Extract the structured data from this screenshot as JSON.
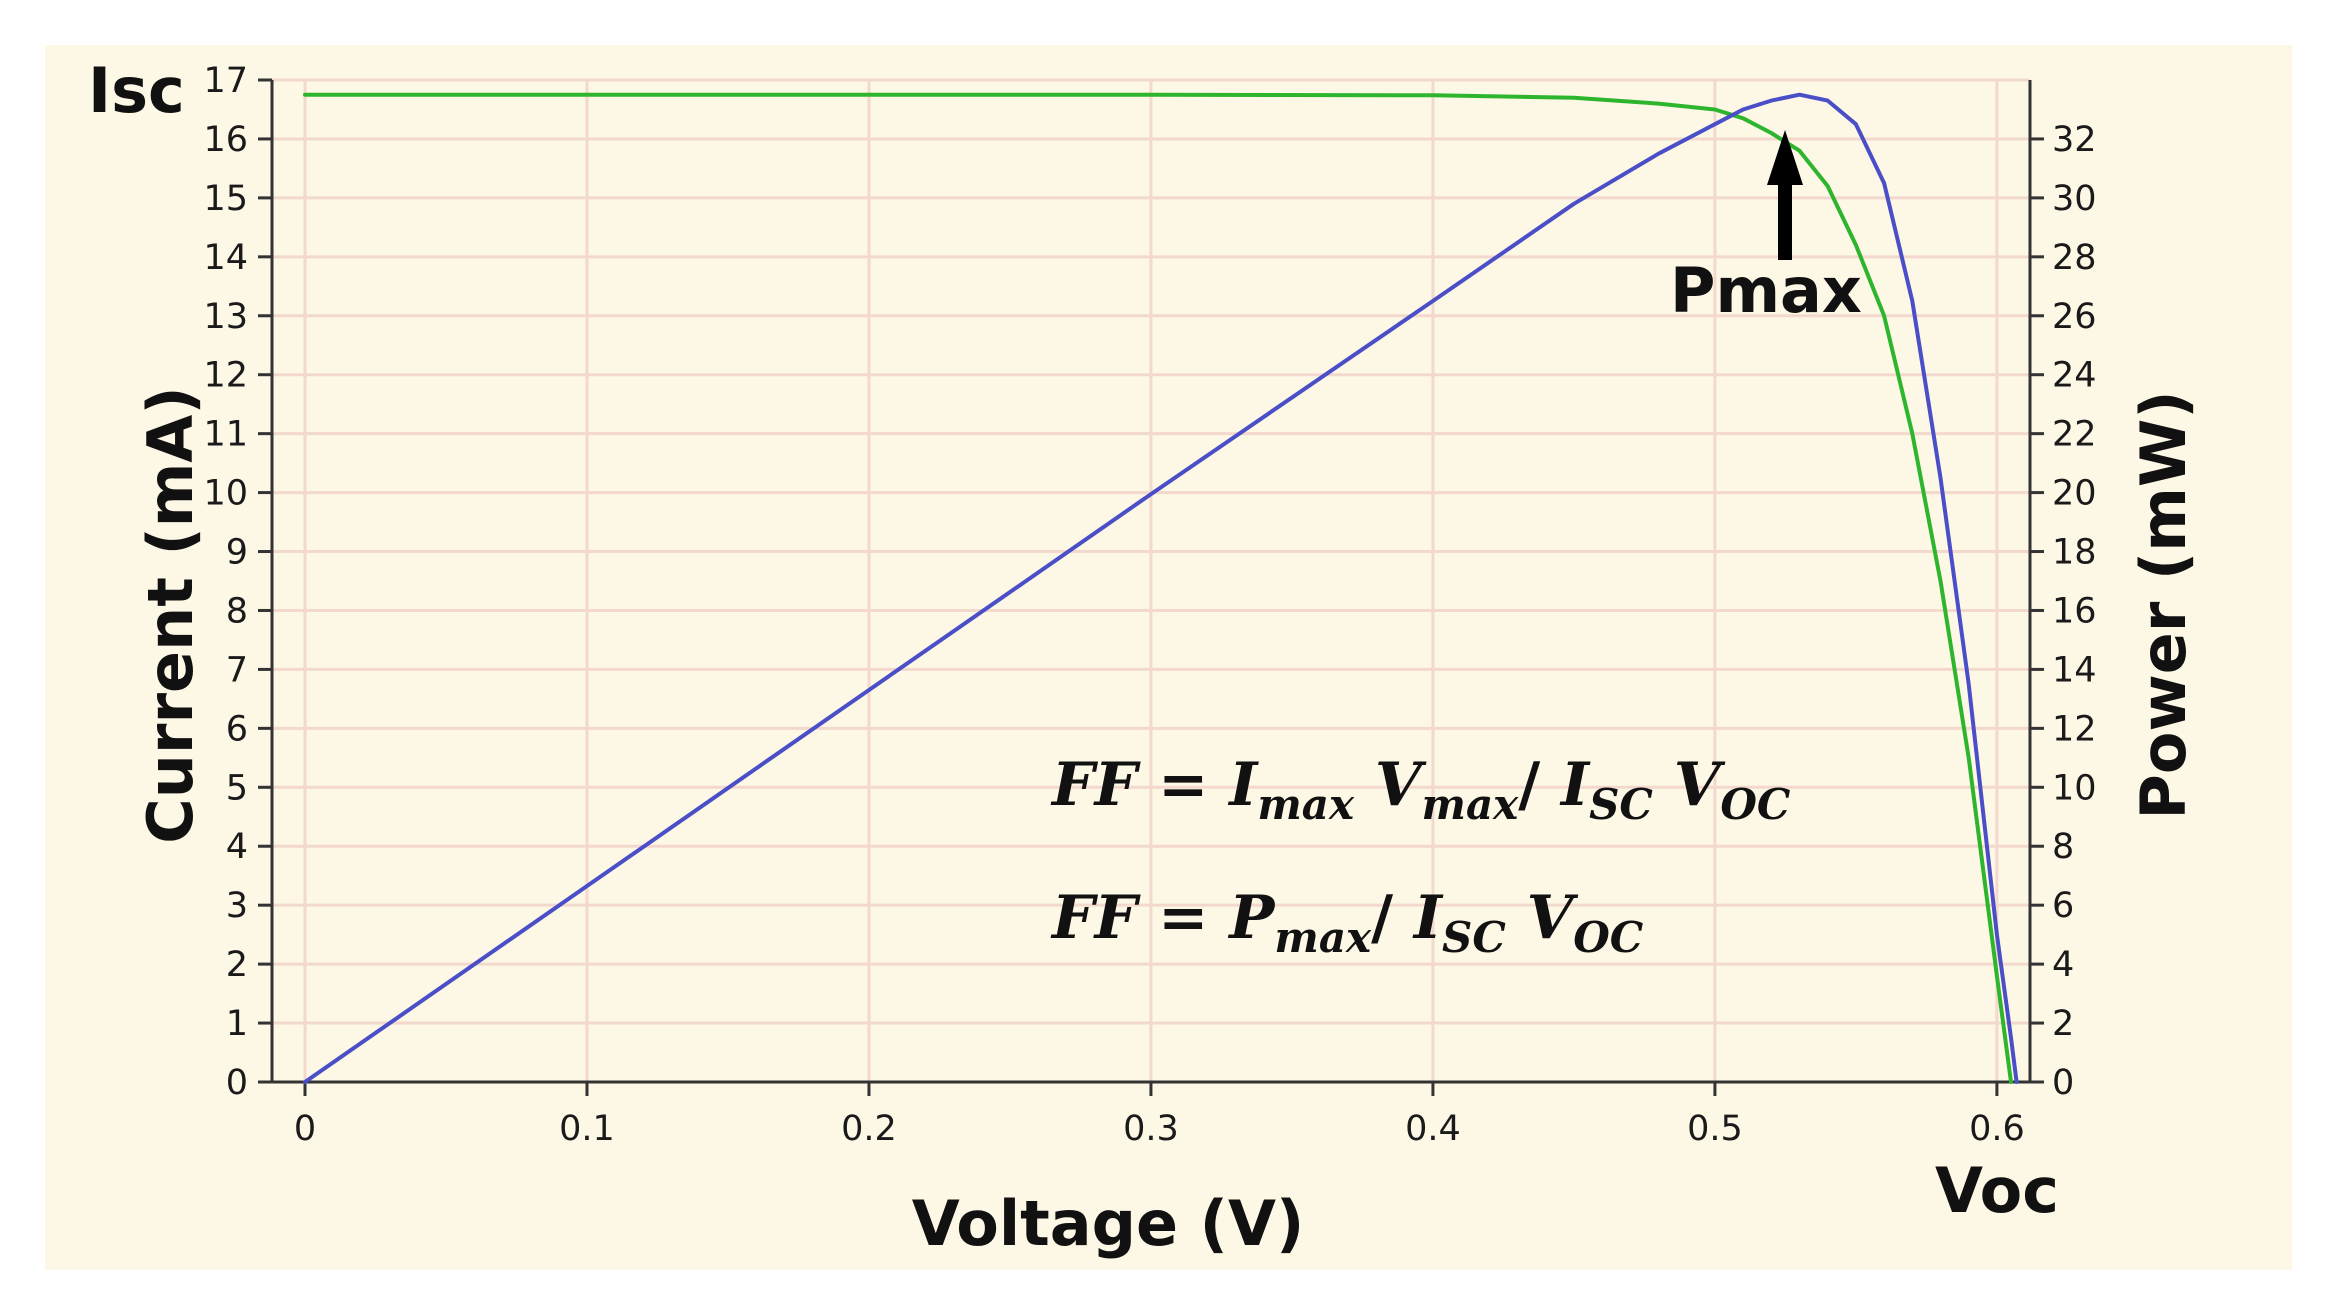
{
  "chart_data": {
    "type": "line",
    "xlabel": "Voltage (V)",
    "ylabel_left": "Current (mA)",
    "ylabel_right": "Power (mW)",
    "xlim": [
      0,
      0.62
    ],
    "ylim_left": [
      0,
      17
    ],
    "ylim_right": [
      0,
      34
    ],
    "x_ticks": [
      "0",
      "0.1",
      "0.2",
      "0.3",
      "0.4",
      "0.5",
      "0.6"
    ],
    "y_left_ticks": [
      "0",
      "1",
      "2",
      "3",
      "4",
      "5",
      "6",
      "7",
      "8",
      "9",
      "10",
      "11",
      "12",
      "13",
      "14",
      "15",
      "16",
      "17"
    ],
    "y_right_ticks": [
      "0",
      "2",
      "4",
      "6",
      "8",
      "10",
      "12",
      "14",
      "16",
      "18",
      "20",
      "22",
      "24",
      "26",
      "28",
      "30",
      "32"
    ],
    "grid": true,
    "series": [
      {
        "axis": "left",
        "color": "#2db52d",
        "x": [
          0,
          0.1,
          0.2,
          0.3,
          0.4,
          0.45,
          0.48,
          0.5,
          0.51,
          0.52,
          0.53,
          0.54,
          0.55,
          0.56,
          0.57,
          0.58,
          0.59,
          0.6,
          0.605
        ],
        "values": [
          16.75,
          16.75,
          16.75,
          16.75,
          16.74,
          16.7,
          16.6,
          16.5,
          16.35,
          16.1,
          15.8,
          15.2,
          14.2,
          13.0,
          11.0,
          8.5,
          5.5,
          1.8,
          0
        ]
      },
      {
        "axis": "right",
        "color": "#4a4ec7",
        "x": [
          0,
          0.1,
          0.2,
          0.3,
          0.4,
          0.45,
          0.48,
          0.5,
          0.51,
          0.52,
          0.53,
          0.54,
          0.55,
          0.56,
          0.57,
          0.58,
          0.59,
          0.6,
          0.605,
          0.607
        ],
        "values": [
          0,
          6.65,
          13.3,
          19.95,
          26.5,
          29.8,
          31.5,
          32.5,
          33.0,
          33.3,
          33.5,
          33.3,
          32.5,
          30.5,
          26.5,
          20.5,
          13.5,
          5.0,
          1.5,
          0
        ]
      }
    ],
    "annotations": {
      "isc": "Isc",
      "voc": "Voc",
      "pmax": "Pmax",
      "formula1": {
        "ff": "FF",
        "eq": " = ",
        "i": "I",
        "max1": "max",
        "v": " V",
        "max2": "max",
        "slash": "/ ",
        "i2": "I",
        "sc": "SC",
        "v2": " V",
        "oc": "OC"
      },
      "formula2": {
        "ff": "FF",
        "eq": " = ",
        "p": "P",
        "max": "max",
        "slash": "/ ",
        "i": "I",
        "sc": "SC",
        "v": " V",
        "oc": "OC"
      }
    },
    "colors": {
      "background": "#fdf7e6",
      "grid": "#f3d8cd",
      "axes": "#333333",
      "current": "#2db52d",
      "power": "#4a4ec7"
    }
  }
}
